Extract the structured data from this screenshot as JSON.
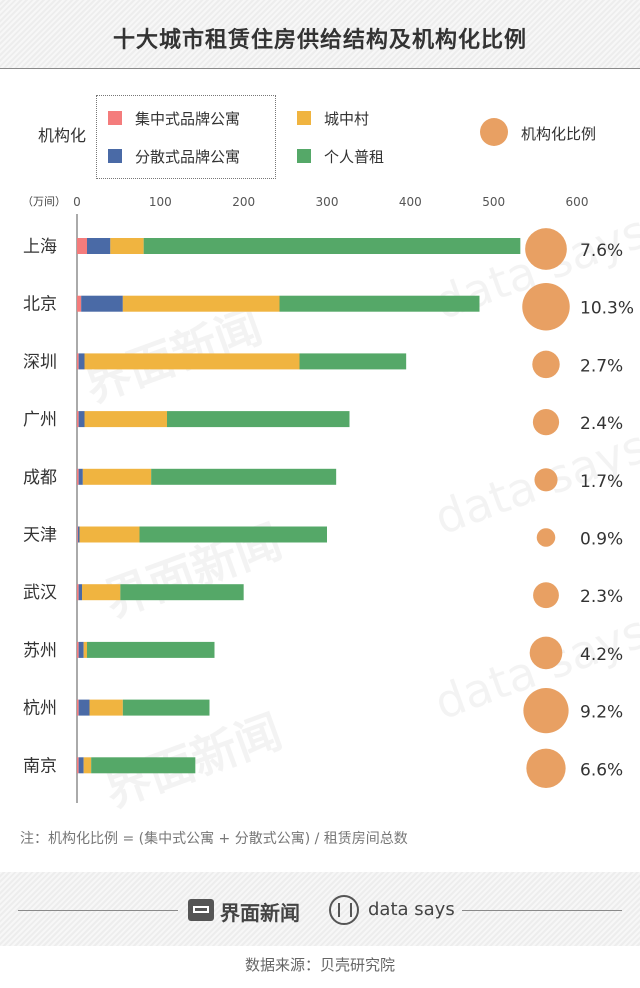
{
  "header": {
    "title": "十大城市租赁住房供给结构及机构化比例"
  },
  "legend": {
    "prefix": "机构化",
    "items": [
      {
        "label": "集中式品牌公寓",
        "color": "#f47c7c"
      },
      {
        "label": "城中村",
        "color": "#f0b440"
      },
      {
        "label": "分散式品牌公寓",
        "color": "#4a6aa6"
      },
      {
        "label": "个人普租",
        "color": "#55a868"
      }
    ],
    "bubble": {
      "label": "机构化比例",
      "color": "#e8a063"
    }
  },
  "chart_data": {
    "type": "bar",
    "orientation": "horizontal",
    "stacked": true,
    "unit": "（万间）",
    "categories": [
      "上海",
      "北京",
      "深圳",
      "广州",
      "成都",
      "天津",
      "武汉",
      "苏州",
      "杭州",
      "南京"
    ],
    "xlim": [
      0,
      600
    ],
    "xticks": [
      0,
      100,
      200,
      300,
      400,
      500,
      600
    ],
    "series": [
      {
        "name": "集中式品牌公寓",
        "color": "#f47c7c",
        "values": [
          12,
          5,
          2,
          2,
          2,
          1,
          2,
          2,
          2,
          2
        ]
      },
      {
        "name": "分散式品牌公寓",
        "color": "#4a6aa6",
        "values": [
          28,
          50,
          7,
          7,
          5,
          2,
          4,
          6,
          13,
          6
        ]
      },
      {
        "name": "城中村",
        "color": "#f0b440",
        "values": [
          40,
          188,
          258,
          99,
          82,
          72,
          46,
          4,
          40,
          9
        ]
      },
      {
        "name": "个人普租",
        "color": "#55a868",
        "values": [
          452,
          240,
          128,
          219,
          222,
          225,
          148,
          153,
          104,
          125
        ]
      }
    ],
    "ratio": {
      "name": "机构化比例",
      "color": "#e8a063",
      "values": [
        7.6,
        10.3,
        2.7,
        2.4,
        1.7,
        0.9,
        2.3,
        4.2,
        9.2,
        6.6
      ],
      "labels": [
        "7.6%",
        "10.3%",
        "2.7%",
        "2.4%",
        "1.7%",
        "0.9%",
        "2.3%",
        "4.2%",
        "9.2%",
        "6.6%"
      ]
    }
  },
  "note": "注：机构化比例  = (集中式公寓 + 分散式公寓) / 租赁房间总数",
  "footer": {
    "brand1": "界面新闻",
    "brand2": "data says",
    "source": "数据来源：贝壳研究院"
  },
  "watermarks": [
    "界面新闻",
    "data says"
  ]
}
